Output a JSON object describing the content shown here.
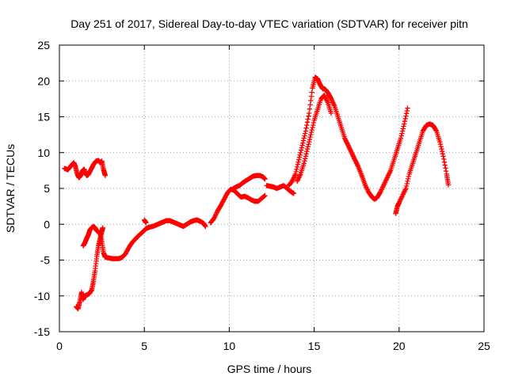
{
  "chart_data": {
    "type": "scatter",
    "title": "Day 251 of 2017, Sidereal Day-to-day VTEC variation (SDTVAR) for receiver pitn",
    "xlabel": "GPS time / hours",
    "ylabel": "SDTVAR / TECUs",
    "xlim": [
      0,
      25
    ],
    "ylim": [
      -15,
      25
    ],
    "xticks": [
      "0",
      "5",
      "10",
      "15",
      "20",
      "25"
    ],
    "yticks": [
      "-15",
      "-10",
      "-5",
      "0",
      "5",
      "10",
      "15",
      "20",
      "25"
    ],
    "xtick_values": [
      0,
      5,
      10,
      15,
      20,
      25
    ],
    "ytick_values": [
      -15,
      -10,
      -5,
      0,
      5,
      10,
      15,
      20,
      25
    ],
    "grid": true,
    "marker": "+",
    "series": [
      {
        "name": "SDTVAR",
        "color": "#ff0000",
        "segments": [
          [
            [
              0.3,
              7.8
            ],
            [
              0.5,
              7.6
            ],
            [
              0.7,
              8.2
            ],
            [
              0.85,
              8.6
            ],
            [
              0.95,
              8.0
            ],
            [
              1.05,
              7.0
            ],
            [
              1.15,
              6.5
            ],
            [
              1.25,
              6.8
            ],
            [
              1.35,
              7.4
            ],
            [
              1.45,
              7.7
            ],
            [
              1.6,
              6.8
            ],
            [
              1.7,
              6.9
            ],
            [
              1.85,
              7.6
            ],
            [
              2.0,
              8.3
            ],
            [
              2.15,
              8.8
            ],
            [
              2.3,
              8.9
            ],
            [
              2.4,
              8.6
            ],
            [
              2.5,
              8.8
            ],
            [
              2.6,
              7.6
            ],
            [
              2.7,
              6.8
            ]
          ],
          [
            [
              1.0,
              -11.5
            ],
            [
              1.1,
              -11.8
            ],
            [
              1.2,
              -10.8
            ],
            [
              1.3,
              -9.5
            ],
            [
              1.4,
              -10.5
            ],
            [
              1.5,
              -10.0
            ],
            [
              1.6,
              -9.9
            ],
            [
              1.75,
              -9.7
            ],
            [
              1.9,
              -9.2
            ],
            [
              2.0,
              -8.0
            ],
            [
              2.1,
              -6.5
            ],
            [
              2.2,
              -4.5
            ],
            [
              2.3,
              -3.0
            ],
            [
              2.4,
              -2.0
            ],
            [
              2.5,
              -1.0
            ],
            [
              2.55,
              -0.5
            ]
          ],
          [
            [
              1.4,
              -3.0
            ],
            [
              1.5,
              -2.6
            ],
            [
              1.6,
              -2.0
            ],
            [
              1.7,
              -1.5
            ],
            [
              1.8,
              -0.8
            ],
            [
              1.9,
              -0.5
            ],
            [
              2.0,
              -0.3
            ],
            [
              2.1,
              -0.5
            ],
            [
              2.2,
              -0.9
            ],
            [
              2.3,
              -1.1
            ],
            [
              2.4,
              -1.3
            ],
            [
              2.5,
              -2.5
            ],
            [
              2.6,
              -4.0
            ],
            [
              2.7,
              -4.6
            ],
            [
              2.9,
              -4.7
            ],
            [
              3.1,
              -4.8
            ],
            [
              3.3,
              -4.8
            ],
            [
              3.5,
              -4.8
            ],
            [
              3.7,
              -4.6
            ],
            [
              3.9,
              -4.1
            ],
            [
              4.1,
              -3.2
            ],
            [
              4.3,
              -2.5
            ],
            [
              4.5,
              -2.0
            ],
            [
              4.7,
              -1.5
            ],
            [
              4.9,
              -1.1
            ],
            [
              5.1,
              -0.6
            ],
            [
              5.3,
              -0.4
            ],
            [
              5.5,
              -0.3
            ],
            [
              5.7,
              -0.1
            ],
            [
              5.9,
              0.1
            ],
            [
              6.1,
              0.3
            ],
            [
              6.3,
              0.5
            ],
            [
              6.5,
              0.5
            ],
            [
              6.7,
              0.3
            ],
            [
              6.9,
              0.1
            ],
            [
              7.1,
              -0.1
            ],
            [
              7.3,
              -0.3
            ],
            [
              7.5,
              0.0
            ],
            [
              7.7,
              0.3
            ],
            [
              7.9,
              0.5
            ],
            [
              8.1,
              0.6
            ],
            [
              8.3,
              0.4
            ],
            [
              8.5,
              0.1
            ],
            [
              8.6,
              -0.3
            ]
          ],
          [
            [
              5.0,
              0.6
            ],
            [
              5.1,
              0.2
            ]
          ],
          [
            [
              8.9,
              0.2
            ],
            [
              9.1,
              0.8
            ],
            [
              9.3,
              1.8
            ],
            [
              9.5,
              2.6
            ],
            [
              9.7,
              3.5
            ],
            [
              9.9,
              4.4
            ],
            [
              10.1,
              4.9
            ],
            [
              10.3,
              4.7
            ],
            [
              10.5,
              4.2
            ],
            [
              10.7,
              3.8
            ],
            [
              10.9,
              3.9
            ],
            [
              11.1,
              3.7
            ],
            [
              11.3,
              3.4
            ],
            [
              11.5,
              3.2
            ],
            [
              11.7,
              3.2
            ],
            [
              11.9,
              3.6
            ],
            [
              12.1,
              4.0
            ]
          ],
          [
            [
              10.2,
              4.9
            ],
            [
              10.4,
              5.2
            ],
            [
              10.6,
              5.4
            ],
            [
              10.8,
              5.8
            ],
            [
              11.0,
              6.1
            ],
            [
              11.2,
              6.4
            ],
            [
              11.4,
              6.7
            ],
            [
              11.6,
              6.8
            ],
            [
              11.8,
              6.8
            ],
            [
              12.0,
              6.6
            ],
            [
              12.1,
              6.3
            ]
          ],
          [
            [
              12.2,
              5.4
            ],
            [
              12.4,
              5.3
            ],
            [
              12.6,
              5.2
            ],
            [
              12.8,
              5.0
            ],
            [
              13.0,
              5.2
            ],
            [
              13.2,
              5.4
            ],
            [
              13.4,
              5.0
            ],
            [
              13.6,
              4.6
            ],
            [
              13.8,
              4.3
            ]
          ],
          [
            [
              13.5,
              5.4
            ],
            [
              13.7,
              6.0
            ],
            [
              13.9,
              7.0
            ],
            [
              14.1,
              9.0
            ],
            [
              14.3,
              11.0
            ],
            [
              14.5,
              13.0
            ],
            [
              14.7,
              15.5
            ],
            [
              14.9,
              19.0
            ],
            [
              15.05,
              20.5
            ],
            [
              15.2,
              20.3
            ],
            [
              15.35,
              19.5
            ],
            [
              15.5,
              18.9
            ],
            [
              15.6,
              18.9
            ],
            [
              15.7,
              18.7
            ],
            [
              15.85,
              18.2
            ],
            [
              16.0,
              17.5
            ],
            [
              16.2,
              16.5
            ],
            [
              16.4,
              15.0
            ],
            [
              16.6,
              13.5
            ],
            [
              16.8,
              12.0
            ],
            [
              17.0,
              11.0
            ],
            [
              17.2,
              10.0
            ],
            [
              17.4,
              9.0
            ],
            [
              17.6,
              8.0
            ],
            [
              17.8,
              6.8
            ],
            [
              18.0,
              5.5
            ],
            [
              18.2,
              4.5
            ],
            [
              18.4,
              3.8
            ],
            [
              18.55,
              3.5
            ],
            [
              18.7,
              3.7
            ],
            [
              18.9,
              4.5
            ],
            [
              19.1,
              5.5
            ],
            [
              19.3,
              6.5
            ],
            [
              19.5,
              7.5
            ],
            [
              19.7,
              9.0
            ],
            [
              19.9,
              10.5
            ],
            [
              20.1,
              12.0
            ],
            [
              20.3,
              14.0
            ],
            [
              20.5,
              16.2
            ]
          ],
          [
            [
              14.0,
              6.0
            ],
            [
              14.2,
              7.0
            ],
            [
              14.4,
              8.5
            ],
            [
              14.6,
              10.5
            ],
            [
              14.8,
              12.5
            ],
            [
              15.0,
              14.5
            ],
            [
              15.2,
              16.0
            ],
            [
              15.4,
              17.5
            ],
            [
              15.6,
              18.0
            ],
            [
              15.8,
              17.0
            ],
            [
              16.0,
              15.5
            ]
          ],
          [
            [
              19.8,
              1.5
            ],
            [
              19.9,
              2.5
            ],
            [
              20.0,
              3.0
            ],
            [
              20.2,
              4.0
            ],
            [
              20.4,
              5.0
            ],
            [
              20.6,
              7.0
            ],
            [
              20.8,
              8.5
            ],
            [
              21.0,
              10.0
            ],
            [
              21.2,
              11.5
            ],
            [
              21.4,
              13.0
            ],
            [
              21.6,
              13.8
            ],
            [
              21.8,
              14.0
            ],
            [
              22.0,
              13.8
            ],
            [
              22.2,
              13.0
            ],
            [
              22.4,
              11.5
            ],
            [
              22.6,
              9.5
            ],
            [
              22.8,
              7.0
            ],
            [
              22.9,
              5.5
            ]
          ]
        ]
      }
    ]
  }
}
